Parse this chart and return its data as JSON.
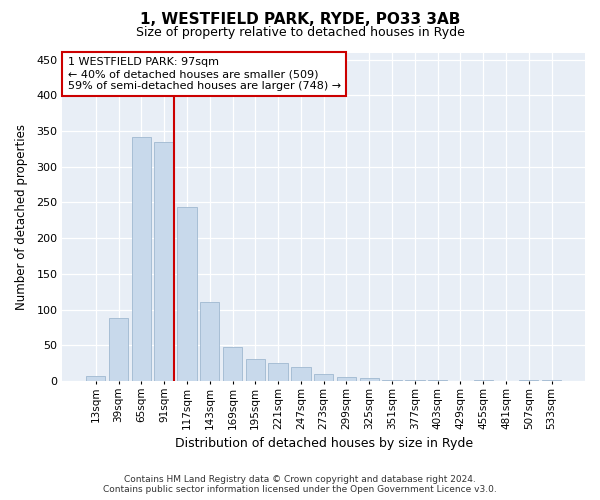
{
  "title_line1": "1, WESTFIELD PARK, RYDE, PO33 3AB",
  "title_line2": "Size of property relative to detached houses in Ryde",
  "xlabel": "Distribution of detached houses by size in Ryde",
  "ylabel": "Number of detached properties",
  "bar_color": "#c8d9eb",
  "bar_edge_color": "#a0b8d0",
  "vline_color": "#cc0000",
  "annotation_line1": "1 WESTFIELD PARK: 97sqm",
  "annotation_line2": "← 40% of detached houses are smaller (509)",
  "annotation_line3": "59% of semi-detached houses are larger (748) →",
  "annotation_box_color": "#cc0000",
  "footer_line1": "Contains HM Land Registry data © Crown copyright and database right 2024.",
  "footer_line2": "Contains public sector information licensed under the Open Government Licence v3.0.",
  "categories": [
    "13sqm",
    "39sqm",
    "65sqm",
    "91sqm",
    "117sqm",
    "143sqm",
    "169sqm",
    "195sqm",
    "221sqm",
    "247sqm",
    "273sqm",
    "299sqm",
    "325sqm",
    "351sqm",
    "377sqm",
    "403sqm",
    "429sqm",
    "455sqm",
    "481sqm",
    "507sqm",
    "533sqm"
  ],
  "values": [
    7,
    88,
    341,
    334,
    244,
    110,
    48,
    31,
    25,
    20,
    10,
    6,
    4,
    2,
    1,
    1,
    0,
    1,
    0,
    2,
    2
  ],
  "vline_bar_index": 3,
  "ylim": [
    0,
    460
  ],
  "yticks": [
    0,
    50,
    100,
    150,
    200,
    250,
    300,
    350,
    400,
    450
  ],
  "background_color": "#e8eef6",
  "plot_background": "#ffffff",
  "grid_color": "#ffffff"
}
